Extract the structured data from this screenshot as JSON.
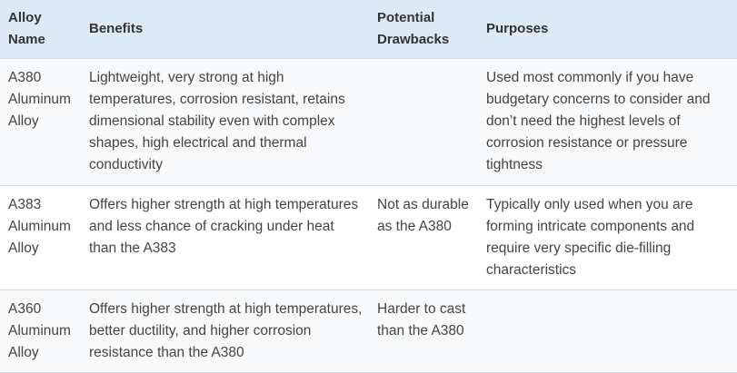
{
  "table": {
    "headers": [
      "Alloy Name",
      "Benefits",
      "Potential Drawbacks",
      "Purposes"
    ],
    "rows": [
      {
        "alloy": "A380 Aluminum Alloy",
        "benefits": "Lightweight, very strong at high temperatures, corrosion resistant, retains dimensional stability even with complex shapes, high electrical and thermal conductivity",
        "drawbacks": "",
        "purposes": "Used most commonly if you have budgetary concerns to consider and don’t need the highest levels of corrosion resistance or pressure tightness"
      },
      {
        "alloy": "A383 Aluminum Alloy",
        "benefits": "Offers higher strength at high temperatures and less chance of cracking under heat than the A383",
        "drawbacks": "Not as durable as the A380",
        "purposes": "Typically only used when you are forming intricate components and require very specific die-filling characteristics"
      },
      {
        "alloy": "A360 Aluminum Alloy",
        "benefits": "Offers higher strength at high temperatures, better ductility, and higher corrosion resistance than the A380",
        "drawbacks": "Harder to cast than the A380",
        "purposes": ""
      }
    ]
  }
}
